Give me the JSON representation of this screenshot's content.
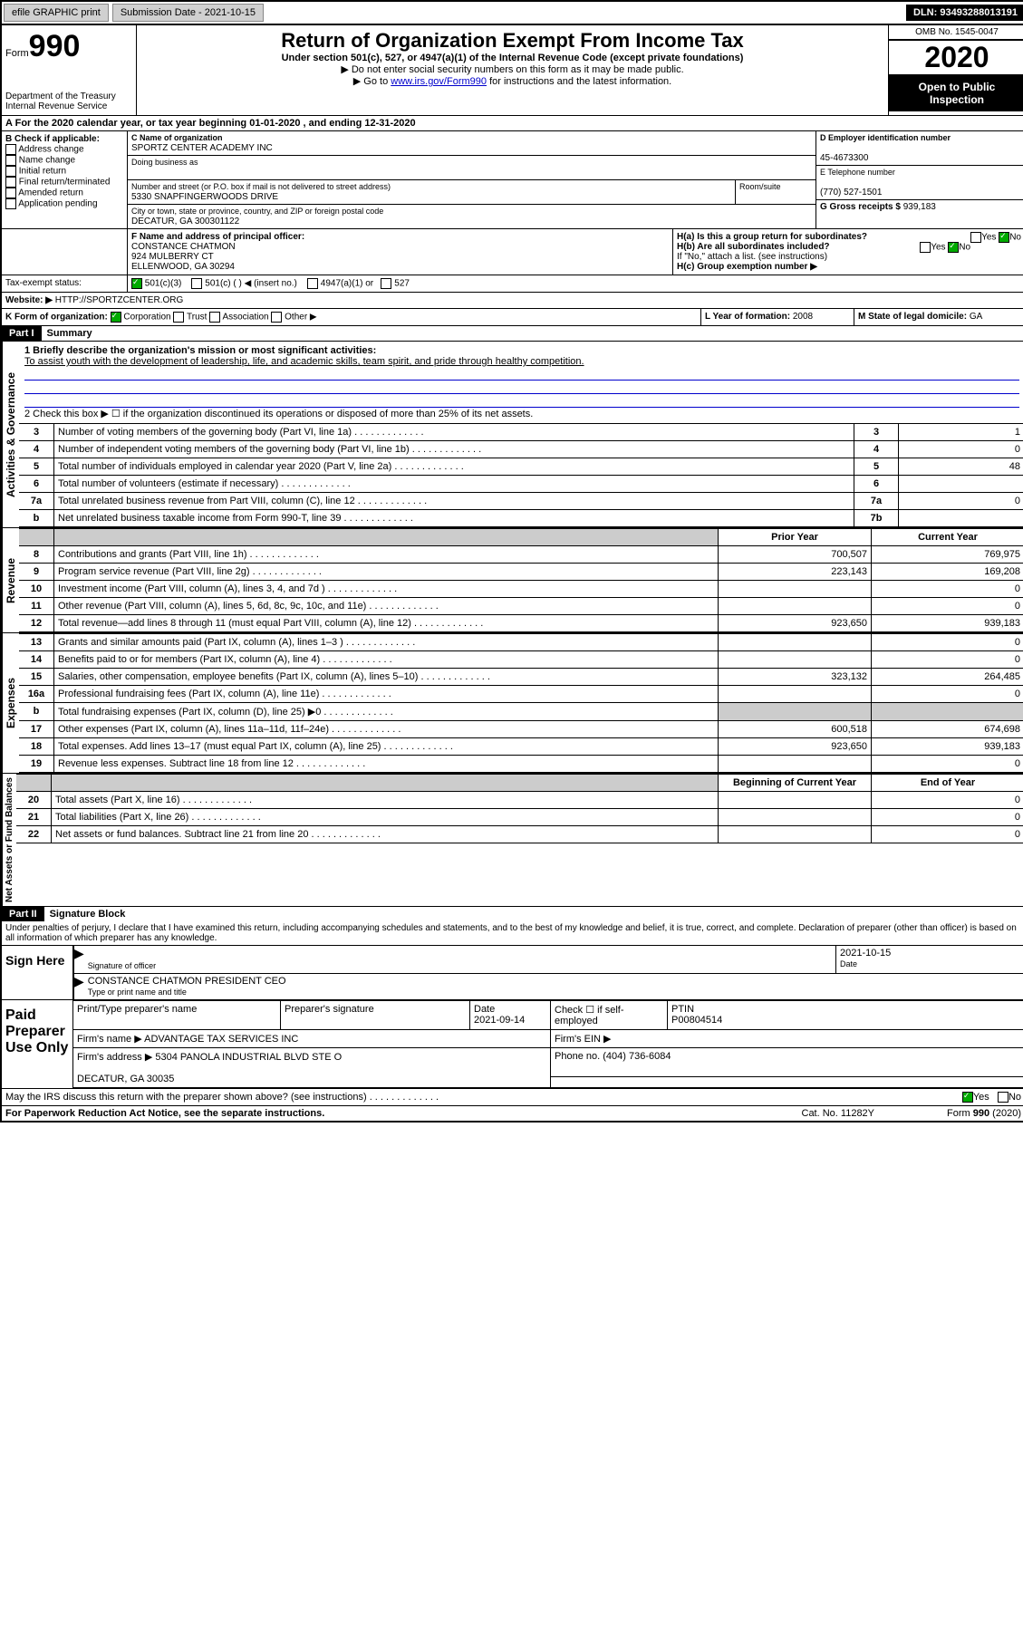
{
  "topbar": {
    "efile": "efile GRAPHIC print",
    "subdate_lbl": "Submission Date - ",
    "subdate": "2021-10-15",
    "dln_lbl": "DLN: ",
    "dln": "93493288013191"
  },
  "header": {
    "form_lbl": "Form",
    "form990": "990",
    "dept": "Department of the Treasury\nInternal Revenue Service",
    "title": "Return of Organization Exempt From Income Tax",
    "sub1": "Under section 501(c), 527, or 4947(a)(1) of the Internal Revenue Code (except private foundations)",
    "sub2": "▶ Do not enter social security numbers on this form as it may be made public.",
    "sub3_pre": "▶ Go to ",
    "sub3_link": "www.irs.gov/Form990",
    "sub3_post": " for instructions and the latest information.",
    "omb": "OMB No. 1545-0047",
    "year": "2020",
    "openpub": "Open to Public Inspection"
  },
  "sectA": {
    "line": "For the 2020 calendar year, or tax year beginning 01-01-2020    , and ending 12-31-2020",
    "b_lbl": "B Check if applicable:",
    "b_items": [
      "Address change",
      "Name change",
      "Initial return",
      "Final return/terminated",
      "Amended return",
      "Application pending"
    ],
    "c_lbl": "C Name of organization",
    "c_name": "SPORTZ CENTER ACADEMY INC",
    "dba": "Doing business as",
    "addr_lbl": "Number and street (or P.O. box if mail is not delivered to street address)",
    "room": "Room/suite",
    "addr": "5330 SNAPFINGERWOODS DRIVE",
    "city_lbl": "City or town, state or province, country, and ZIP or foreign postal code",
    "city": "DECATUR, GA  300301122",
    "d_lbl": "D Employer identification number",
    "d_val": "45-4673300",
    "e_lbl": "E Telephone number",
    "e_val": "(770) 527-1501",
    "g_lbl": "G Gross receipts $ ",
    "g_val": "939,183",
    "f_lbl": "F  Name and address of principal officer:",
    "f_name": "CONSTANCE CHATMON",
    "f_addr1": "924 MULBERRY CT",
    "f_addr2": "ELLENWOOD, GA  30294",
    "ha": "H(a)  Is this a group return for subordinates?",
    "hb": "H(b)  Are all subordinates included?",
    "hnote": "If \"No,\" attach a list. (see instructions)",
    "hc": "H(c)  Group exemption number ▶",
    "yes": "Yes",
    "no": "No",
    "i_lbl": "Tax-exempt status:",
    "i_501c3": "501(c)(3)",
    "i_501c": "501(c) (  ) ◀ (insert no.)",
    "i_4947": "4947(a)(1) or",
    "i_527": "527",
    "j_lbl": "Website: ▶",
    "j_val": "HTTP://SPORTZCENTER.ORG",
    "k_lbl": "K Form of organization:",
    "k_corp": "Corporation",
    "k_trust": "Trust",
    "k_assoc": "Association",
    "k_other": "Other ▶",
    "l_lbl": "L Year of formation: ",
    "l_val": "2008",
    "m_lbl": "M State of legal domicile: ",
    "m_val": "GA"
  },
  "part1": {
    "bar": "Part I",
    "title": "Summary",
    "vlabel": "Activities & Governance",
    "q1": "1   Briefly describe the organization's mission or most significant activities:",
    "q1ans": "To assist youth with the development of leadership, life, and academic skills, team spirit, and pride through healthy competition.",
    "q2": "2    Check this box ▶ ☐  if the organization discontinued its operations or disposed of more than 25% of its net assets.",
    "rows": [
      {
        "n": "3",
        "t": "Number of voting members of the governing body (Part VI, line 1a)",
        "box": "3",
        "v": "1"
      },
      {
        "n": "4",
        "t": "Number of independent voting members of the governing body (Part VI, line 1b)",
        "box": "4",
        "v": "0"
      },
      {
        "n": "5",
        "t": "Total number of individuals employed in calendar year 2020 (Part V, line 2a)",
        "box": "5",
        "v": "48"
      },
      {
        "n": "6",
        "t": "Total number of volunteers (estimate if necessary)",
        "box": "6",
        "v": ""
      },
      {
        "n": "7a",
        "t": "Total unrelated business revenue from Part VIII, column (C), line 12",
        "box": "7a",
        "v": "0"
      },
      {
        "n": "b",
        "t": "Net unrelated business taxable income from Form 990-T, line 39",
        "box": "7b",
        "v": ""
      }
    ]
  },
  "revenue": {
    "vlabel": "Revenue",
    "hdr_prior": "Prior Year",
    "hdr_curr": "Current Year",
    "rows": [
      {
        "n": "8",
        "t": "Contributions and grants (Part VIII, line 1h)",
        "p": "700,507",
        "c": "769,975"
      },
      {
        "n": "9",
        "t": "Program service revenue (Part VIII, line 2g)",
        "p": "223,143",
        "c": "169,208"
      },
      {
        "n": "10",
        "t": "Investment income (Part VIII, column (A), lines 3, 4, and 7d )",
        "p": "",
        "c": "0"
      },
      {
        "n": "11",
        "t": "Other revenue (Part VIII, column (A), lines 5, 6d, 8c, 9c, 10c, and 11e)",
        "p": "",
        "c": "0"
      },
      {
        "n": "12",
        "t": "Total revenue—add lines 8 through 11 (must equal Part VIII, column (A), line 12)",
        "p": "923,650",
        "c": "939,183"
      }
    ]
  },
  "expenses": {
    "vlabel": "Expenses",
    "rows": [
      {
        "n": "13",
        "t": "Grants and similar amounts paid (Part IX, column (A), lines 1–3 )",
        "p": "",
        "c": "0"
      },
      {
        "n": "14",
        "t": "Benefits paid to or for members (Part IX, column (A), line 4)",
        "p": "",
        "c": "0"
      },
      {
        "n": "15",
        "t": "Salaries, other compensation, employee benefits (Part IX, column (A), lines 5–10)",
        "p": "323,132",
        "c": "264,485"
      },
      {
        "n": "16a",
        "t": "Professional fundraising fees (Part IX, column (A), line 11e)",
        "p": "",
        "c": "0"
      },
      {
        "n": "b",
        "t": "Total fundraising expenses (Part IX, column (D), line 25) ▶0",
        "p": "shade",
        "c": "shade"
      },
      {
        "n": "17",
        "t": "Other expenses (Part IX, column (A), lines 11a–11d, 11f–24e)",
        "p": "600,518",
        "c": "674,698"
      },
      {
        "n": "18",
        "t": "Total expenses. Add lines 13–17 (must equal Part IX, column (A), line 25)",
        "p": "923,650",
        "c": "939,183"
      },
      {
        "n": "19",
        "t": "Revenue less expenses. Subtract line 18 from line 12",
        "p": "",
        "c": "0"
      }
    ]
  },
  "netassets": {
    "vlabel": "Net Assets or Fund Balances",
    "hdr_beg": "Beginning of Current Year",
    "hdr_end": "End of Year",
    "rows": [
      {
        "n": "20",
        "t": "Total assets (Part X, line 16)",
        "p": "",
        "c": "0"
      },
      {
        "n": "21",
        "t": "Total liabilities (Part X, line 26)",
        "p": "",
        "c": "0"
      },
      {
        "n": "22",
        "t": "Net assets or fund balances. Subtract line 21 from line 20",
        "p": "",
        "c": "0"
      }
    ]
  },
  "part2": {
    "bar": "Part II",
    "title": "Signature Block",
    "perjury": "Under penalties of perjury, I declare that I have examined this return, including accompanying schedules and statements, and to the best of my knowledge and belief, it is true, correct, and complete. Declaration of preparer (other than officer) is based on all information of which preparer has any knowledge."
  },
  "sign": {
    "lbl": "Sign Here",
    "sig_of": "Signature of officer",
    "date": "2021-10-15",
    "date_lbl": "Date",
    "name": "CONSTANCE CHATMON  PRESIDENT CEO",
    "name_lbl": "Type or print name and title"
  },
  "paid": {
    "lbl": "Paid Preparer Use Only",
    "h_name": "Print/Type preparer's name",
    "h_sig": "Preparer's signature",
    "h_date": "Date",
    "h_check": "Check ☐ if self-employed",
    "h_ptin": "PTIN",
    "date": "2021-09-14",
    "ptin": "P00804514",
    "firm_lbl": "Firm's name    ▶",
    "firm": "ADVANTAGE TAX SERVICES INC",
    "ein_lbl": "Firm's EIN ▶",
    "addr_lbl": "Firm's address ▶",
    "addr1": "5304 PANOLA INDUSTRIAL BLVD STE O",
    "addr2": "DECATUR, GA  30035",
    "phone_lbl": "Phone no. ",
    "phone": "(404) 736-6084",
    "discuss": "May the IRS discuss this return with the preparer shown above? (see instructions)"
  },
  "footer": {
    "pra": "For Paperwork Reduction Act Notice, see the separate instructions.",
    "cat": "Cat. No. 11282Y",
    "form": "Form 990 (2020)"
  }
}
